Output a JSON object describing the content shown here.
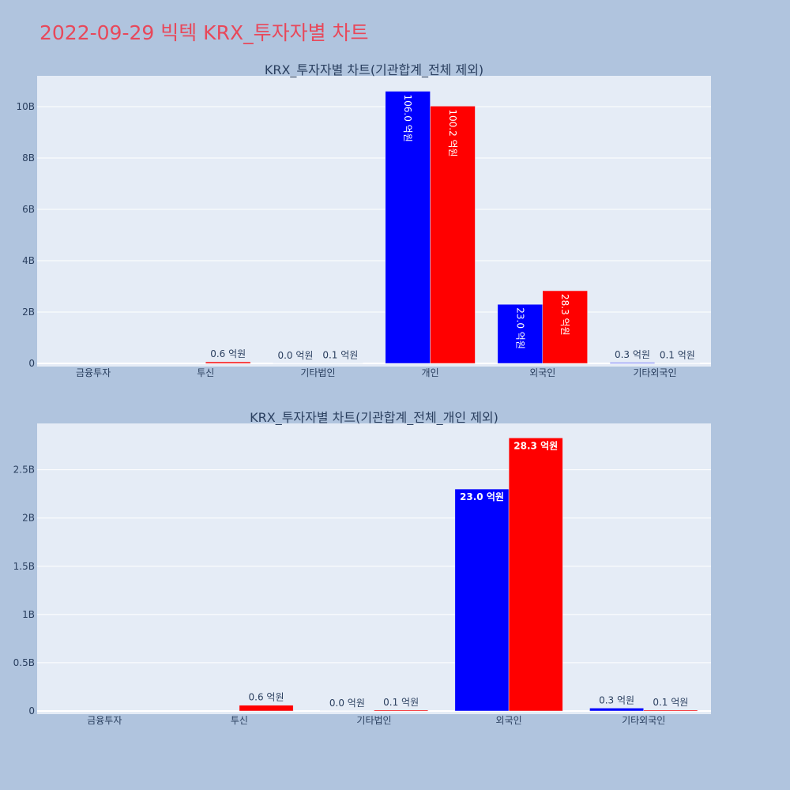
{
  "page": {
    "title": "2022-09-29 빅텍 KRX_투자자별 차트"
  },
  "colors": {
    "buy": "#0000ff",
    "sell": "#ff0000",
    "plot_bg": "#e5ecf6",
    "paper_bg": "#b0c4de",
    "title": "#e8485a"
  },
  "chart_data": [
    {
      "type": "bar",
      "title": "KRX_투자자별 차트(기관합계_전체 제외)",
      "categories": [
        "금융투자",
        "투신",
        "기타법인",
        "개인",
        "외국인",
        "기타외국인"
      ],
      "series": [
        {
          "values": [
            0,
            0,
            0.002,
            10.6,
            2.3,
            0.03
          ],
          "labels": [
            "",
            "",
            "0.0 억원",
            "106.0 억원",
            "23.0 억원",
            "0.3 억원"
          ]
        },
        {
          "values": [
            0,
            0.06,
            0.01,
            10.02,
            2.83,
            0.01
          ],
          "labels": [
            "",
            "0.6 억원",
            "0.1 억원",
            "100.2 억원",
            "28.3 억원",
            "0.1 억원"
          ]
        }
      ],
      "yticks": [
        "0",
        "2B",
        "4B",
        "6B",
        "8B",
        "10B"
      ],
      "ylim": [
        0,
        11.2
      ],
      "unit": "B",
      "label_orientation": "vertical-inside"
    },
    {
      "type": "bar",
      "title": "KRX_투자자별 차트(기관합계_전체_개인 제외)",
      "categories": [
        "금융투자",
        "투신",
        "기타법인",
        "외국인",
        "기타외국인"
      ],
      "series": [
        {
          "values": [
            0,
            0,
            0.002,
            2.3,
            0.03
          ],
          "labels": [
            "",
            "",
            "0.0 억원",
            "23.0 억원",
            "0.3 억원"
          ]
        },
        {
          "values": [
            0,
            0.06,
            0.01,
            2.83,
            0.01
          ],
          "labels": [
            "",
            "0.6 억원",
            "0.1 억원",
            "28.3 억원",
            "0.1 억원"
          ]
        }
      ],
      "yticks": [
        "0",
        "0.5B",
        "1B",
        "1.5B",
        "2B",
        "2.5B"
      ],
      "ylim": [
        0,
        2.98
      ],
      "unit": "B",
      "label_orientation": "horizontal-inside"
    }
  ]
}
